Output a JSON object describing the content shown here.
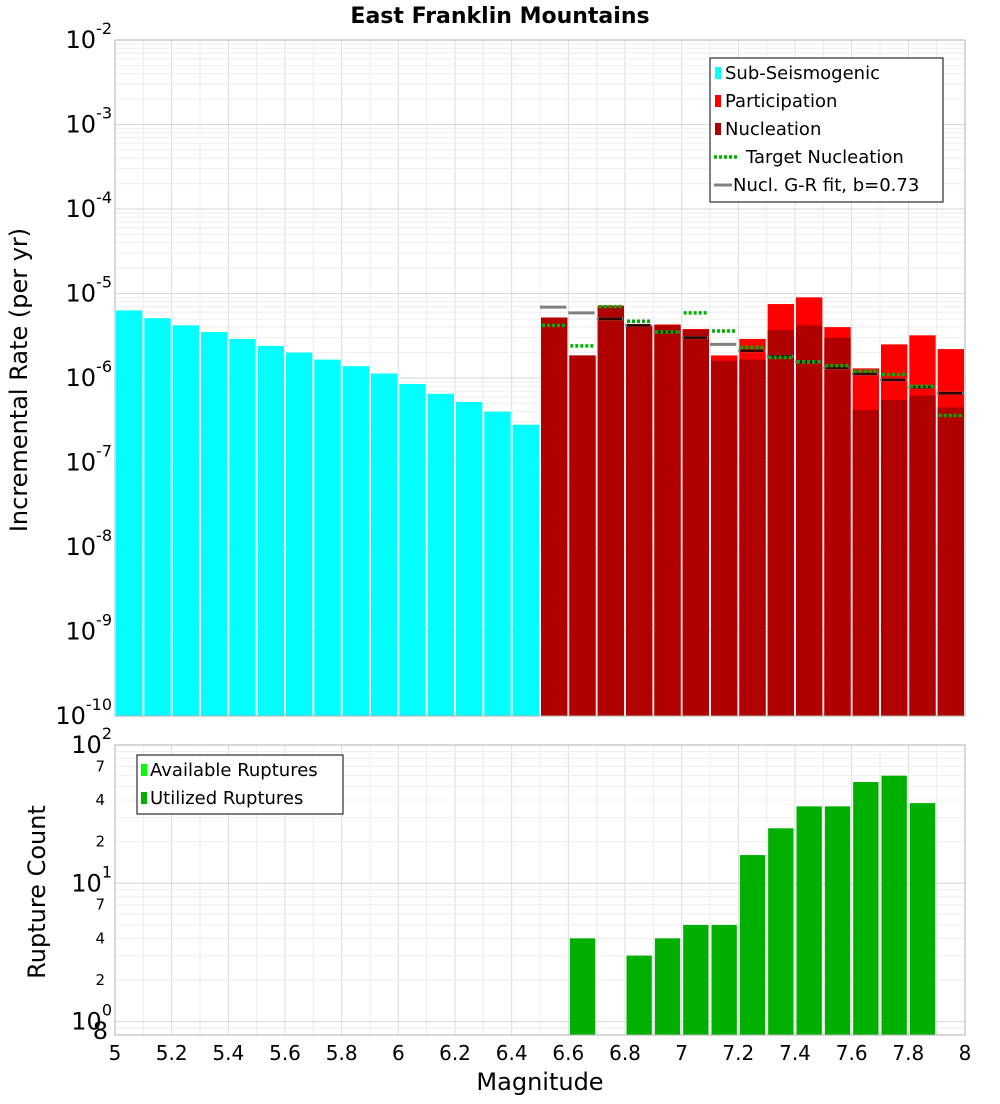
{
  "chart_data": [
    {
      "type": "bar",
      "title": "East Franklin Mountains",
      "xlabel": "",
      "ylabel": "Incremental Rate (per yr)",
      "yscale": "log",
      "xlim": [
        5,
        8
      ],
      "ylim": [
        1e-10,
        0.01
      ],
      "bin_width": 0.1,
      "grid": true,
      "y_tick_labels": [
        {
          "base": "10",
          "exp": "-10"
        },
        {
          "base": "10",
          "exp": "-9"
        },
        {
          "base": "10",
          "exp": "-8"
        },
        {
          "base": "10",
          "exp": "-7"
        },
        {
          "base": "10",
          "exp": "-6"
        },
        {
          "base": "10",
          "exp": "-5"
        },
        {
          "base": "10",
          "exp": "-4"
        },
        {
          "base": "10",
          "exp": "-3"
        },
        {
          "base": "10",
          "exp": "-2"
        }
      ],
      "legend_position": "top-right",
      "legend": [
        {
          "label": "Sub-Seismogenic",
          "color": "#00ffff",
          "style": "box"
        },
        {
          "label": "Participation",
          "color": "#ff0000",
          "style": "box"
        },
        {
          "label": "Nucleation",
          "color": "#b00000",
          "style": "box"
        },
        {
          "label": "Target Nucleation",
          "color": "#00b000",
          "style": "dotted"
        },
        {
          "label": "Nucl. G-R fit, b=0.73",
          "color": "#808080",
          "style": "line"
        }
      ],
      "series": [
        {
          "name": "Sub-Seismogenic",
          "color": "#00ffff",
          "x": [
            5.05,
            5.15,
            5.25,
            5.35,
            5.45,
            5.55,
            5.65,
            5.75,
            5.85,
            5.95,
            6.05,
            6.15,
            6.25,
            6.35,
            6.45
          ],
          "values": [
            6.3e-06,
            5.1e-06,
            4.2e-06,
            3.5e-06,
            2.9e-06,
            2.4e-06,
            2e-06,
            1.65e-06,
            1.38e-06,
            1.13e-06,
            8.5e-07,
            6.5e-07,
            5.2e-07,
            4e-07,
            2.8e-07
          ]
        },
        {
          "name": "Participation",
          "color": "#ff0000",
          "x": [
            6.55,
            6.65,
            6.75,
            6.85,
            6.95,
            7.05,
            7.15,
            7.25,
            7.35,
            7.45,
            7.55,
            7.65,
            7.75,
            7.85,
            7.95
          ],
          "values": [
            5.2e-06,
            1.85e-06,
            7.2e-06,
            4.2e-06,
            4.3e-06,
            3.8e-06,
            1.85e-06,
            2.9e-06,
            7.5e-06,
            9e-06,
            4e-06,
            1.3e-06,
            2.5e-06,
            3.2e-06,
            2.2e-06
          ]
        },
        {
          "name": "Nucleation",
          "color": "#b00000",
          "x": [
            6.55,
            6.65,
            6.75,
            6.85,
            6.95,
            7.05,
            7.15,
            7.25,
            7.35,
            7.45,
            7.55,
            7.65,
            7.75,
            7.85,
            7.95
          ],
          "values": [
            5.2e-06,
            1.85e-06,
            7e-06,
            4.1e-06,
            4.2e-06,
            3.7e-06,
            1.6e-06,
            1.65e-06,
            3.7e-06,
            4.2e-06,
            3e-06,
            4.2e-07,
            5.5e-07,
            6.2e-07,
            4.5e-07
          ]
        },
        {
          "name": "Target Nucleation",
          "color": "#00b000",
          "x": [
            6.55,
            6.65,
            6.75,
            6.85,
            6.95,
            7.05,
            7.15,
            7.25,
            7.35,
            7.45,
            7.55,
            7.65,
            7.75,
            7.85,
            7.95
          ],
          "values": [
            4.2e-06,
            2.4e-06,
            7e-06,
            4.7e-06,
            3.5e-06,
            5.9e-06,
            3.6e-06,
            2.3e-06,
            1.75e-06,
            1.55e-06,
            1.4e-06,
            1.2e-06,
            1.1e-06,
            8e-07,
            3.6e-07
          ]
        },
        {
          "name": "Nucl. G-R fit, b=0.73",
          "color": "#808080",
          "x": [
            6.55,
            6.65,
            6.75,
            6.85,
            6.95,
            7.05,
            7.15,
            7.25,
            7.35,
            7.45,
            7.55,
            7.65,
            7.75,
            7.85,
            7.95
          ],
          "values": [
            6.9e-06,
            5.9e-06,
            5e-06,
            4.2e-06,
            3.5e-06,
            3e-06,
            2.5e-06,
            2.1e-06,
            1.8e-06,
            1.55e-06,
            1.32e-06,
            1.12e-06,
            9.5e-07,
            7.8e-07,
            6.6e-07
          ]
        },
        {
          "name": "Nucleation (G-R fit overlay)",
          "color": "#300000",
          "x": [
            6.75,
            6.85,
            6.95,
            7.05,
            7.25,
            7.35,
            7.45,
            7.55,
            7.65,
            7.75,
            7.85,
            7.95
          ],
          "values": [
            5e-06,
            4.2e-06,
            3.5e-06,
            3e-06,
            2.1e-06,
            1.8e-06,
            1.55e-06,
            1.32e-06,
            1.12e-06,
            9.5e-07,
            7.8e-07,
            6.6e-07
          ]
        }
      ]
    },
    {
      "type": "bar",
      "title": "",
      "xlabel": "Magnitude",
      "ylabel": "Rupture Count",
      "yscale": "log",
      "xlim": [
        5,
        8
      ],
      "ylim": [
        0.8,
        100
      ],
      "bin_width": 0.1,
      "grid": true,
      "x_tick_labels": [
        "5",
        "5.2",
        "5.4",
        "5.6",
        "5.8",
        "6",
        "6.2",
        "6.4",
        "6.6",
        "6.8",
        "7",
        "7.2",
        "7.4",
        "7.6",
        "7.8",
        "8"
      ],
      "y_tick_labels": [
        {
          "base": "10",
          "exp": "0"
        },
        {
          "base": "10",
          "exp": "1"
        },
        {
          "base": "10",
          "exp": "2"
        }
      ],
      "y_minor_tick_labels": [
        {
          "value": 0.8,
          "label": "8"
        },
        {
          "value": 2,
          "label": "2"
        },
        {
          "value": 4,
          "label": "4"
        },
        {
          "value": 7,
          "label": "7"
        },
        {
          "value": 20,
          "label": "2"
        },
        {
          "value": 40,
          "label": "4"
        },
        {
          "value": 70,
          "label": "7"
        }
      ],
      "legend_position": "top-left",
      "legend": [
        {
          "label": "Available Ruptures",
          "color": "#00ff00",
          "style": "box"
        },
        {
          "label": "Utilized Ruptures",
          "color": "#00b000",
          "style": "box"
        }
      ],
      "series": [
        {
          "name": "Utilized Ruptures",
          "color": "#00b000",
          "x": [
            6.65,
            6.85,
            6.95,
            7.05,
            7.15,
            7.25,
            7.35,
            7.45,
            7.55,
            7.65,
            7.75,
            7.85
          ],
          "values": [
            4,
            3,
            4,
            5,
            5,
            16,
            25,
            36,
            36,
            54,
            60,
            38
          ]
        }
      ]
    }
  ]
}
